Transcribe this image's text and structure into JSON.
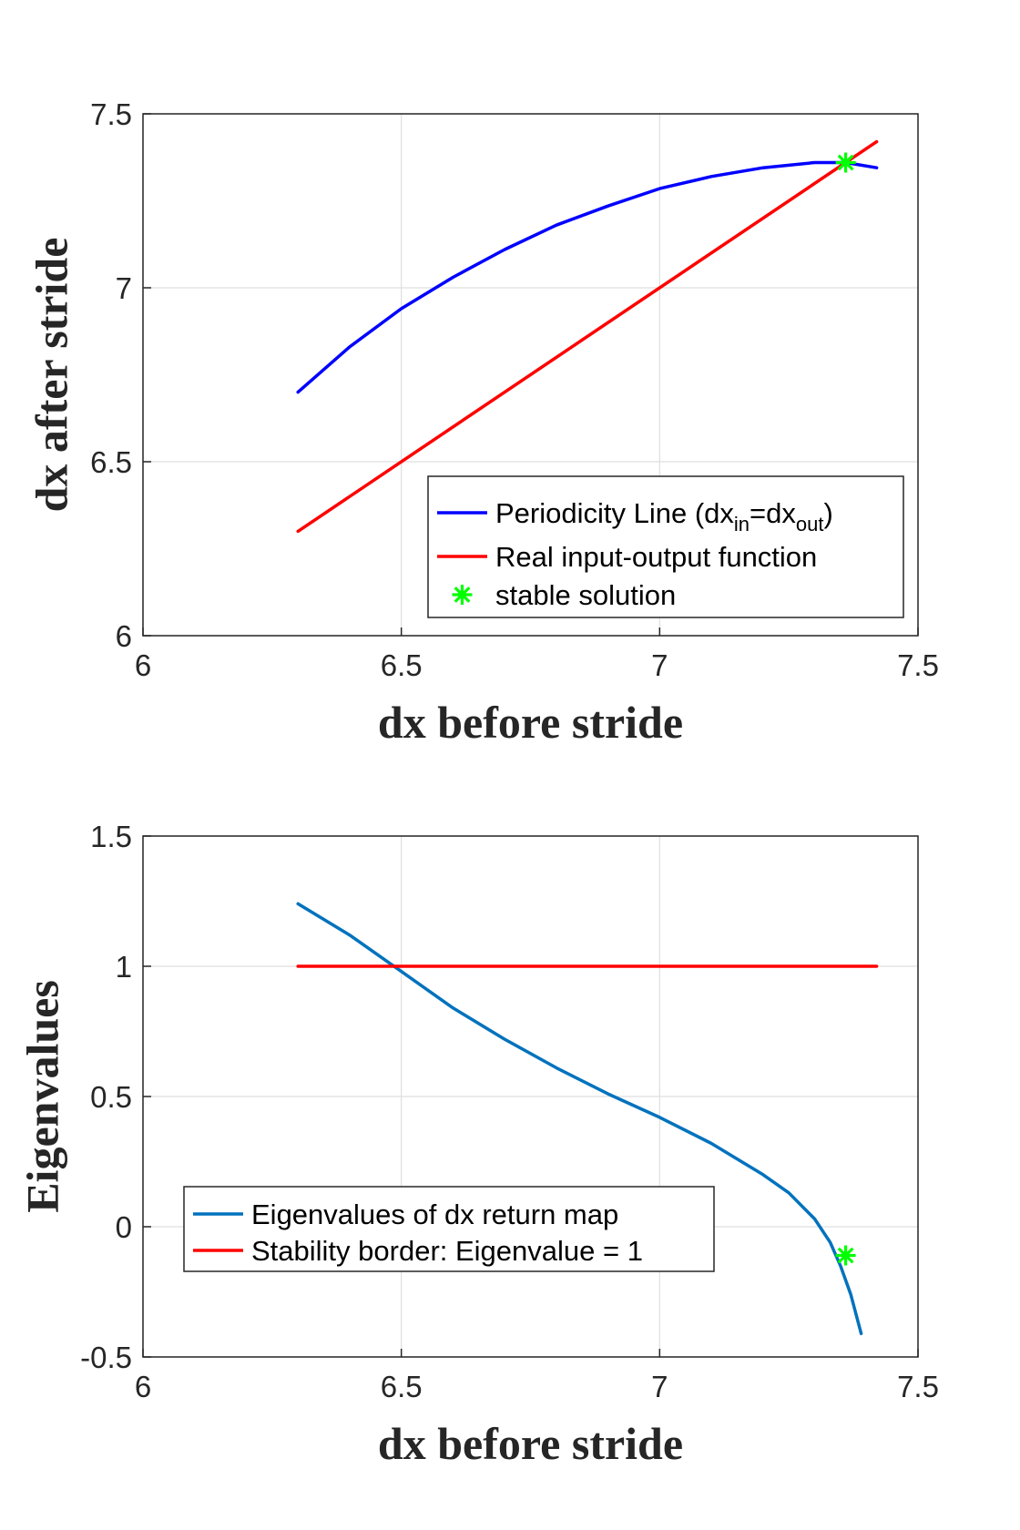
{
  "colors": {
    "periodicity": "#0000ff",
    "real_io": "#ff0000",
    "stable": "#00ff00",
    "eigen": "#0072bd",
    "border": "#ff0000"
  },
  "chart_data": [
    {
      "type": "line",
      "xlabel": "dx before stride",
      "ylabel": "dx after stride",
      "xlim": [
        6,
        7.5
      ],
      "ylim": [
        6,
        7.5
      ],
      "xticks": [
        "6",
        "6.5",
        "7",
        "7.5"
      ],
      "yticks": [
        "6",
        "6.5",
        "7",
        "7.5"
      ],
      "grid": true,
      "legend_position": "bottom-right",
      "series": [
        {
          "name": "Periodicity Line (dx",
          "name_sub_in": "in",
          "name_mid": "=dx",
          "name_sub_out": "out",
          "name_end": ")",
          "color_key": "periodicity",
          "x": [
            6.3,
            6.4,
            6.5,
            6.6,
            6.7,
            6.8,
            6.9,
            7.0,
            7.1,
            7.2,
            7.3,
            7.36,
            7.42
          ],
          "y": [
            6.7,
            6.83,
            6.94,
            7.03,
            7.11,
            7.18,
            7.235,
            7.285,
            7.32,
            7.345,
            7.36,
            7.36,
            7.345
          ]
        },
        {
          "name": "Real input-output function",
          "color_key": "real_io",
          "x": [
            6.3,
            7.42
          ],
          "y": [
            6.3,
            7.42
          ]
        },
        {
          "name": "stable solution",
          "color_key": "stable",
          "marker": "*",
          "x": [
            7.36
          ],
          "y": [
            7.36
          ]
        }
      ]
    },
    {
      "type": "line",
      "xlabel": "dx before stride",
      "ylabel": "Eigenvalues",
      "xlim": [
        6,
        7.5
      ],
      "ylim": [
        -0.5,
        1.5
      ],
      "xticks": [
        "6",
        "6.5",
        "7",
        "7.5"
      ],
      "yticks": [
        "-0.5",
        "0",
        "0.5",
        "1",
        "1.5"
      ],
      "grid": true,
      "legend_position": "bottom-left",
      "series": [
        {
          "name": "Eigenvalues of dx return map",
          "color_key": "eigen",
          "x": [
            6.3,
            6.4,
            6.5,
            6.6,
            6.7,
            6.8,
            6.9,
            7.0,
            7.1,
            7.2,
            7.25,
            7.3,
            7.33,
            7.35,
            7.37,
            7.39
          ],
          "y": [
            1.24,
            1.12,
            0.98,
            0.84,
            0.72,
            0.61,
            0.51,
            0.42,
            0.32,
            0.2,
            0.13,
            0.03,
            -0.06,
            -0.15,
            -0.26,
            -0.41
          ]
        },
        {
          "name": "Stability border: Eigenvalue = 1",
          "color_key": "border",
          "x": [
            6.3,
            7.42
          ],
          "y": [
            1,
            1
          ]
        },
        {
          "name": "",
          "color_key": "stable",
          "marker": "*",
          "x": [
            7.36
          ],
          "y": [
            -0.11
          ]
        }
      ]
    }
  ]
}
